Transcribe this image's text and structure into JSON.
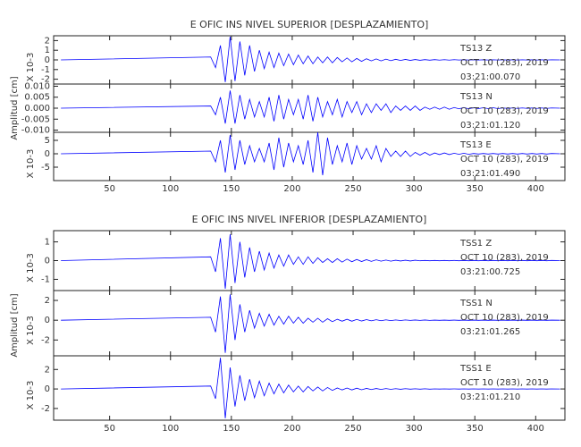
{
  "chart_data": [
    {
      "type": "line",
      "title": "E OFIC INS NIVEL SUPERIOR [DESPLAZAMIENTO]",
      "ylabel": "Amplitud [cm]",
      "xlim": [
        4,
        424
      ],
      "xticks": [
        50,
        100,
        150,
        200,
        250,
        300,
        350,
        400
      ],
      "x": [
        10,
        133,
        137,
        141,
        145,
        149,
        153,
        157,
        161,
        165,
        169,
        173,
        177,
        181,
        185,
        189,
        193,
        197,
        201,
        205,
        209,
        213,
        217,
        221,
        225,
        229,
        233,
        237,
        241,
        245,
        249,
        253,
        257,
        261,
        265,
        269,
        273,
        277,
        281,
        285,
        289,
        293,
        297,
        301,
        305,
        309,
        313,
        317,
        321,
        325,
        329,
        333,
        337,
        341,
        345,
        349,
        353,
        357,
        361,
        365,
        369,
        373,
        377,
        381,
        385,
        389,
        393,
        397,
        401,
        405,
        409,
        413,
        420
      ],
      "panels": [
        {
          "ylim": [
            -2.5,
            2.5
          ],
          "yticks": [
            2,
            1,
            0,
            -1,
            -2
          ],
          "scale_label": "X 10-3",
          "color": "#0000ff",
          "annotations": [
            "TS13   Z",
            "OCT 10 (283), 2019",
            "03:21:00.070"
          ],
          "values": [
            0,
            0.3,
            -0.8,
            1.5,
            -2.3,
            2.4,
            -2.2,
            1.9,
            -1.6,
            1.5,
            -1.2,
            1.0,
            -0.9,
            0.8,
            -0.8,
            0.7,
            -0.6,
            0.6,
            -0.5,
            0.5,
            -0.4,
            0.4,
            -0.4,
            0.3,
            -0.3,
            0.3,
            -0.3,
            0.25,
            -0.2,
            0.2,
            -0.2,
            0.15,
            -0.15,
            0.12,
            -0.1,
            0.1,
            -0.1,
            0.08,
            -0.08,
            0.06,
            -0.06,
            0.05,
            -0.05,
            0.04,
            -0.04,
            0.03,
            -0.03,
            0.03,
            -0.02,
            0.02,
            -0.02,
            0.02,
            -0.01,
            0.01,
            -0.01,
            0.01,
            -0.01,
            0.01,
            -0.01,
            0.01,
            -0.01,
            0.01,
            -0.01,
            0.01,
            -0.01,
            0.01,
            -0.01,
            0.01,
            -0.01,
            0.01,
            -0.01,
            0.01,
            0
          ]
        },
        {
          "ylim": [
            -0.011,
            0.011
          ],
          "yticks": [
            {
              "value": 0.01,
              "label": "0.010"
            },
            {
              "value": 0.005,
              "label": "0.005"
            },
            {
              "value": 0,
              "label": "0.000"
            },
            {
              "value": -0.005,
              "label": "-0.005"
            },
            {
              "value": -0.01,
              "label": "-0.010"
            }
          ],
          "color": "#0000ff",
          "annotations": [
            "TS13   N",
            "OCT 10 (283), 2019",
            "03:21:01.120"
          ],
          "values": [
            0,
            0.001,
            -0.003,
            0.005,
            -0.007,
            0.008,
            -0.007,
            0.006,
            -0.005,
            0.004,
            -0.004,
            0.003,
            -0.004,
            0.005,
            -0.006,
            0.006,
            -0.005,
            0.004,
            -0.003,
            0.004,
            -0.005,
            0.006,
            -0.006,
            0.005,
            -0.004,
            0.003,
            -0.003,
            0.004,
            -0.004,
            0.003,
            -0.002,
            0.003,
            -0.003,
            0.002,
            -0.002,
            0.002,
            -0.001,
            0.002,
            -0.002,
            0.001,
            -0.001,
            0.001,
            -0.001,
            0.001,
            -0.001,
            0.0005,
            -0.0005,
            0.0005,
            -0.0005,
            0.0005,
            -0.0005,
            0.0003,
            -0.0003,
            0.0003,
            -0.0003,
            0.0002,
            -0.0002,
            0.0002,
            -0.0002,
            0.0002,
            -0.0002,
            0.0001,
            -0.0001,
            0.0001,
            -0.0001,
            0.0001,
            -0.0001,
            0.0001,
            -0.0001,
            0.0001,
            -0.0001,
            0.0001,
            0
          ]
        },
        {
          "ylim": [
            -10,
            8
          ],
          "yticks": [
            5,
            0,
            -5
          ],
          "scale_label": "X 10-3",
          "color": "#0000ff",
          "annotations": [
            "TS13   E",
            "OCT 10 (283), 2019",
            "03:21:01.490"
          ],
          "values": [
            0,
            1,
            -3,
            5,
            -7,
            7,
            -6,
            5,
            -4,
            3,
            -3,
            2,
            -3,
            4,
            -6,
            6,
            -5,
            4,
            -3,
            3,
            -4,
            5,
            -7,
            8,
            -8,
            6,
            -4,
            3,
            -3,
            4,
            -4,
            3,
            -2,
            2,
            -2,
            3,
            -3,
            2,
            -1,
            1,
            -1,
            1,
            -1,
            0.5,
            -0.5,
            0.5,
            -0.5,
            0.3,
            -0.3,
            0.3,
            -0.3,
            0.2,
            -0.2,
            0.2,
            -0.2,
            0.1,
            -0.1,
            0.1,
            -0.1,
            0.1,
            -0.1,
            0.1,
            -0.1,
            0.1,
            -0.1,
            0.1,
            -0.1,
            0.1,
            -0.1,
            0.1,
            -0.1,
            0.1,
            0
          ]
        }
      ]
    },
    {
      "type": "line",
      "title": "E OFIC INS NIVEL INFERIOR [DESPLAZAMIENTO]",
      "ylabel": "Amplitud [cm]",
      "xlim": [
        4,
        424
      ],
      "xticks": [
        50,
        100,
        150,
        200,
        250,
        300,
        350,
        400
      ],
      "x": [
        10,
        133,
        137,
        141,
        145,
        149,
        153,
        157,
        161,
        165,
        169,
        173,
        177,
        181,
        185,
        189,
        193,
        197,
        201,
        205,
        209,
        213,
        217,
        221,
        225,
        229,
        233,
        237,
        241,
        245,
        249,
        253,
        257,
        261,
        265,
        269,
        273,
        277,
        281,
        285,
        289,
        293,
        297,
        301,
        305,
        309,
        313,
        317,
        321,
        325,
        329,
        333,
        337,
        341,
        345,
        349,
        353,
        357,
        361,
        365,
        369,
        373,
        377,
        381,
        385,
        389,
        393,
        397,
        401,
        405,
        409,
        413,
        420
      ],
      "panels": [
        {
          "ylim": [
            -1.6,
            1.6
          ],
          "yticks": [
            1,
            0,
            -1
          ],
          "scale_label": "X 10-3",
          "color": "#0000ff",
          "annotations": [
            "TSS1   Z",
            "OCT 10 (283), 2019",
            "03:21:00.725"
          ],
          "values": [
            0,
            0.2,
            -0.6,
            1.2,
            -1.5,
            1.4,
            -1.2,
            1.0,
            -0.9,
            0.7,
            -0.6,
            0.5,
            -0.5,
            0.4,
            -0.4,
            0.3,
            -0.3,
            0.3,
            -0.2,
            0.2,
            -0.2,
            0.2,
            -0.15,
            0.15,
            -0.1,
            0.1,
            -0.1,
            0.1,
            -0.08,
            0.08,
            -0.06,
            0.06,
            -0.05,
            0.05,
            -0.04,
            0.04,
            -0.03,
            0.03,
            -0.03,
            0.02,
            -0.02,
            0.02,
            -0.02,
            0.02,
            -0.01,
            0.01,
            -0.01,
            0.01,
            -0.01,
            0.01,
            -0.01,
            0.01,
            -0.01,
            0.01,
            -0.01,
            0.01,
            -0.01,
            0.01,
            -0.01,
            0.01,
            -0.01,
            0.01,
            -0.01,
            0.01,
            -0.01,
            0.01,
            -0.01,
            0.01,
            -0.01,
            0.01,
            -0.01,
            0.01,
            0
          ]
        },
        {
          "ylim": [
            -3.6,
            3
          ],
          "yticks": [
            2,
            0,
            -2
          ],
          "scale_label": "X 10-3",
          "color": "#0000ff",
          "annotations": [
            "TSS1   N",
            "OCT 10 (283), 2019",
            "03:21:01.265"
          ],
          "values": [
            0,
            0.3,
            -1.2,
            2.4,
            -3.3,
            2.6,
            -2.0,
            1.6,
            -1.2,
            1.0,
            -0.8,
            0.7,
            -0.6,
            0.6,
            -0.5,
            0.4,
            -0.4,
            0.4,
            -0.3,
            0.3,
            -0.3,
            0.2,
            -0.2,
            0.2,
            -0.2,
            0.15,
            -0.15,
            0.1,
            -0.1,
            0.1,
            -0.1,
            0.08,
            -0.08,
            0.06,
            -0.06,
            0.05,
            -0.05,
            0.04,
            -0.04,
            0.03,
            -0.03,
            0.03,
            -0.02,
            0.02,
            -0.02,
            0.02,
            -0.02,
            0.01,
            -0.01,
            0.01,
            -0.01,
            0.01,
            -0.01,
            0.01,
            -0.01,
            0.01,
            -0.01,
            0.01,
            -0.01,
            0.01,
            -0.01,
            0.01,
            -0.01,
            0.01,
            -0.01,
            0.01,
            -0.01,
            0.01,
            -0.01,
            0.01,
            -0.01,
            0.01,
            0
          ]
        },
        {
          "ylim": [
            -3.2,
            3.4
          ],
          "yticks": [
            2,
            0,
            -2
          ],
          "scale_label": "X 10-3",
          "color": "#0000ff",
          "annotations": [
            "TSS1   E",
            "OCT 10 (283), 2019",
            "03:21:01.210"
          ],
          "values": [
            0,
            0.3,
            -1.0,
            3.2,
            -3.0,
            2.2,
            -1.8,
            1.4,
            -1.2,
            1.0,
            -0.9,
            0.8,
            -0.7,
            0.6,
            -0.5,
            0.5,
            -0.4,
            0.4,
            -0.3,
            0.3,
            -0.3,
            0.25,
            -0.2,
            0.2,
            -0.2,
            0.15,
            -0.15,
            0.1,
            -0.1,
            0.1,
            -0.1,
            0.08,
            -0.08,
            0.06,
            -0.06,
            0.05,
            -0.05,
            0.04,
            -0.04,
            0.03,
            -0.03,
            0.03,
            -0.02,
            0.02,
            -0.02,
            0.02,
            -0.02,
            0.01,
            -0.01,
            0.01,
            -0.01,
            0.01,
            -0.01,
            0.01,
            -0.01,
            0.01,
            -0.01,
            0.01,
            -0.01,
            0.01,
            -0.01,
            0.01,
            -0.01,
            0.01,
            -0.01,
            0.01,
            -0.01,
            0.01,
            -0.01,
            0.01,
            -0.01,
            0.01,
            0
          ]
        }
      ]
    }
  ]
}
